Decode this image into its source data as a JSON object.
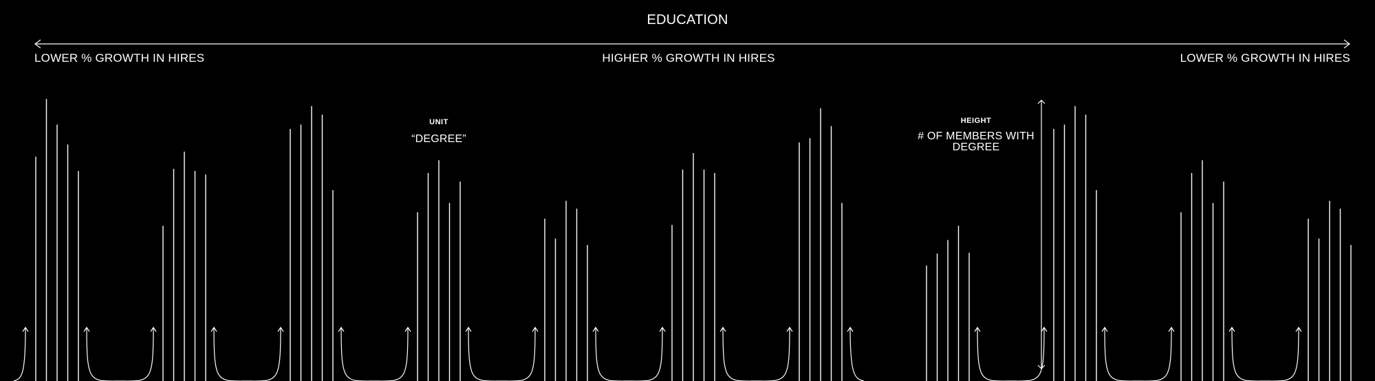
{
  "header": {
    "title": "EDUCATION",
    "left_label": "LOWER % GROWTH IN HIRES",
    "center_label": "HIGHER % GROWTH IN HIRES",
    "right_label": "LOWER % GROWTH IN HIRES"
  },
  "legend": {
    "unit_title": "UNIT",
    "unit_text": "“DEGREE”",
    "height_title": "HEIGHT",
    "height_text": "# OF MEMBERS WITH DEGREE"
  },
  "colors": {
    "background": "#000000",
    "foreground": "#ffffff"
  },
  "chart_data": {
    "type": "bar",
    "title": "EDUCATION",
    "groups": [
      {
        "values": [
          315,
          396,
          360,
          332,
          295
        ]
      },
      {
        "values": [
          218,
          298,
          322,
          295,
          290
        ]
      },
      {
        "values": [
          354,
          360,
          386,
          374,
          268
        ]
      },
      {
        "values": [
          237,
          292,
          310,
          250,
          280
        ]
      },
      {
        "values": [
          228,
          200,
          253,
          242,
          191
        ]
      },
      {
        "values": [
          219,
          297,
          320,
          297,
          292
        ]
      },
      {
        "values": [
          335,
          341,
          383,
          358,
          250
        ]
      },
      {
        "values": [
          162,
          179,
          198,
          218,
          180
        ]
      },
      {
        "values": [
          354,
          360,
          386,
          374,
          268
        ]
      },
      {
        "values": [
          237,
          292,
          310,
          250,
          280
        ]
      },
      {
        "values": [
          228,
          200,
          253,
          242,
          191
        ]
      }
    ]
  }
}
